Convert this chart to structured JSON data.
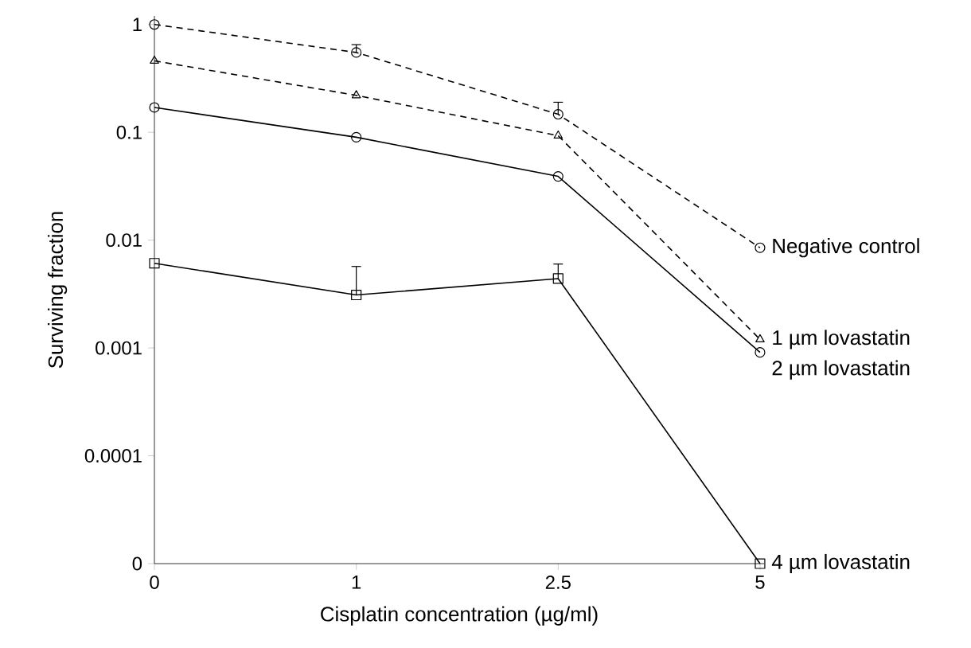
{
  "chart_data": {
    "type": "line",
    "xlabel": "Cisplatin concentration (µg/ml)",
    "ylabel": "Surviving fraction",
    "categories": [
      "0",
      "1",
      "2.5",
      "5"
    ],
    "log": "y",
    "ylim": [
      1e-05,
      1.2
    ],
    "yticks": [
      1,
      0.1,
      0.01,
      0.001,
      0.0001,
      {
        "value": 1e-05,
        "label": "0"
      }
    ],
    "series": [
      {
        "name": "Negative control",
        "color": "#000000",
        "marker": "circle",
        "line_style": "dashed",
        "values": [
          1,
          0.55,
          0.147,
          0.0085
        ],
        "errors": [
          null,
          [
            0.55,
            0.65
          ],
          [
            0.147,
            0.19
          ],
          null
        ]
      },
      {
        "name": "1 µm lovastatin",
        "color": "#000000",
        "marker": "triangle",
        "line_style": "dashed",
        "values": [
          0.46,
          0.22,
          0.093,
          0.0012
        ]
      },
      {
        "name": "2 µm lovastatin",
        "color": "#000000",
        "marker": "circle",
        "line_style": "solid",
        "values": [
          0.17,
          0.09,
          0.039,
          0.00091
        ]
      },
      {
        "name": "4 µm lovastatin",
        "color": "#000000",
        "marker": "square",
        "line_style": "solid",
        "values": [
          0.0061,
          0.0031,
          0.0044,
          1e-05
        ],
        "errors": [
          null,
          [
            0.0031,
            0.0057
          ],
          [
            0.0044,
            0.006
          ],
          null
        ]
      }
    ]
  }
}
